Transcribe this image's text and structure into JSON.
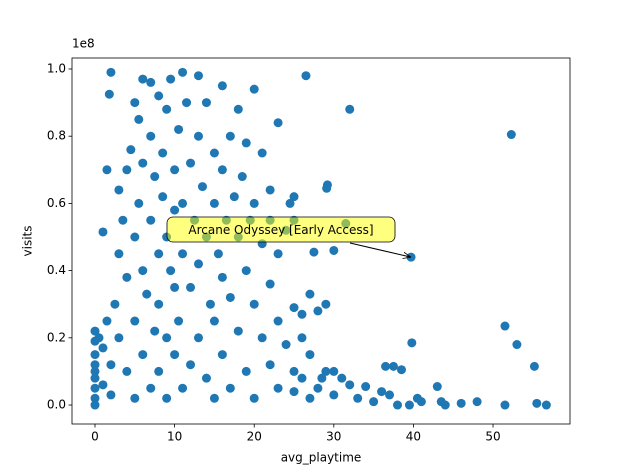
{
  "chart_data": {
    "type": "scatter",
    "color": "#1f77b4",
    "x_label": "avg_playtime",
    "y_label": "visits",
    "y_offset_text": "1e8",
    "xlim": [
      -2.89,
      59.67
    ],
    "ylim": [
      -0.0565,
      1.0327
    ],
    "xticks": [
      0,
      10,
      20,
      30,
      40,
      50
    ],
    "yticks": [
      {
        "value": 0,
        "label": "0.0"
      },
      0.2,
      0.4,
      0.6,
      0.8,
      {
        "value": 1,
        "label": "1.0"
      }
    ],
    "annotation": {
      "text": "Arcane Odyssey [Early Access]",
      "x": 39.7,
      "y": 0.44
    },
    "x": [
      0,
      0,
      0,
      0,
      0,
      0,
      0,
      0,
      0,
      0.5,
      1,
      1,
      1.5,
      2,
      2,
      2.5,
      3,
      3,
      3,
      3.5,
      4,
      4,
      4,
      4.5,
      5,
      5,
      5,
      5,
      5.5,
      5.5,
      6,
      6,
      6,
      6,
      6.5,
      7,
      7,
      7,
      7,
      7.5,
      7.5,
      8,
      8,
      8,
      8,
      8.5,
      8.5,
      9,
      9,
      9,
      9,
      9.5,
      9.5,
      10,
      10,
      10,
      10,
      10.5,
      10.5,
      11,
      11,
      11,
      11,
      11.5,
      12,
      12,
      12,
      12.5,
      13,
      13,
      13,
      13,
      13.5,
      14,
      14,
      14,
      14.5,
      15,
      15,
      15,
      15,
      15.5,
      16,
      16,
      16,
      16,
      16.5,
      17,
      17,
      17,
      17.5,
      18,
      18,
      18,
      18.5,
      19,
      19,
      19,
      19.5,
      20,
      20,
      20,
      20,
      21,
      21,
      21,
      22,
      22,
      22,
      23,
      23,
      23,
      24,
      24,
      25,
      25,
      25,
      26,
      26,
      27,
      27,
      28,
      29,
      30,
      31,
      33,
      35,
      37,
      38,
      41,
      44,
      2,
      1.8,
      26.5,
      32,
      23,
      52.3,
      29.2,
      29.1,
      22,
      25,
      24.5,
      31.5,
      30,
      27.5,
      39.7,
      1.5,
      1,
      51.5,
      53,
      39.8,
      55.2,
      37.5,
      38.5,
      36.5,
      43,
      40.5,
      46,
      51.5,
      55.5,
      56.7,
      43.5,
      39.5,
      48,
      34,
      32,
      36,
      30,
      28.5,
      29,
      27,
      25,
      26,
      28
    ],
    "y": [
      0.22,
      0.19,
      0.15,
      0.12,
      0.1,
      0.08,
      0.05,
      0.02,
      0,
      0.2,
      0.17,
      0.06,
      0.25,
      0.12,
      0.03,
      0.3,
      0.45,
      0.2,
      0.64,
      0.55,
      0.38,
      0.1,
      0.7,
      0.76,
      0.5,
      0.25,
      0.9,
      0.02,
      0.85,
      0.6,
      0.97,
      0.4,
      0.15,
      0.72,
      0.33,
      0.96,
      0.55,
      0.05,
      0.8,
      0.68,
      0.22,
      0.92,
      0.45,
      0.3,
      0.1,
      0.62,
      0.75,
      0.88,
      0.5,
      0.2,
      0.02,
      0.4,
      0.97,
      0.7,
      0.35,
      0.15,
      0.58,
      0.82,
      0.25,
      0.99,
      0.6,
      0.45,
      0.05,
      0.9,
      0.72,
      0.35,
      0.12,
      0.55,
      0.98,
      0.8,
      0.42,
      0.2,
      0.65,
      0.9,
      0.5,
      0.08,
      0.3,
      0.75,
      0.6,
      0.25,
      0.02,
      0.45,
      0.95,
      0.7,
      0.38,
      0.15,
      0.55,
      0.8,
      0.32,
      0.05,
      0.62,
      0.88,
      0.5,
      0.22,
      0.68,
      0.78,
      0.4,
      0.1,
      0.55,
      0.94,
      0.6,
      0.3,
      0.02,
      0.48,
      0.2,
      0.75,
      0.36,
      0.12,
      0.55,
      0.25,
      0.05,
      0.45,
      0.18,
      0.52,
      0.1,
      0.55,
      0.04,
      0.08,
      0.2,
      0.15,
      0.02,
      0.05,
      0.1,
      0.03,
      0.08,
      0.02,
      0.01,
      0.03,
      0,
      0.01,
      0,
      0.99,
      0.925,
      0.98,
      0.88,
      0.84,
      0.805,
      0.655,
      0.645,
      0.64,
      0.62,
      0.6,
      0.54,
      0.46,
      0.455,
      0.44,
      0.7,
      0.515,
      0.235,
      0.18,
      0.185,
      0.115,
      0.115,
      0.105,
      0.115,
      0.055,
      0.02,
      0.005,
      0,
      0.005,
      0,
      0.01,
      0,
      0.01,
      0.055,
      0.06,
      0.04,
      0.1,
      0.08,
      0.3,
      0.33,
      0.29,
      0.27,
      0.28
    ]
  }
}
